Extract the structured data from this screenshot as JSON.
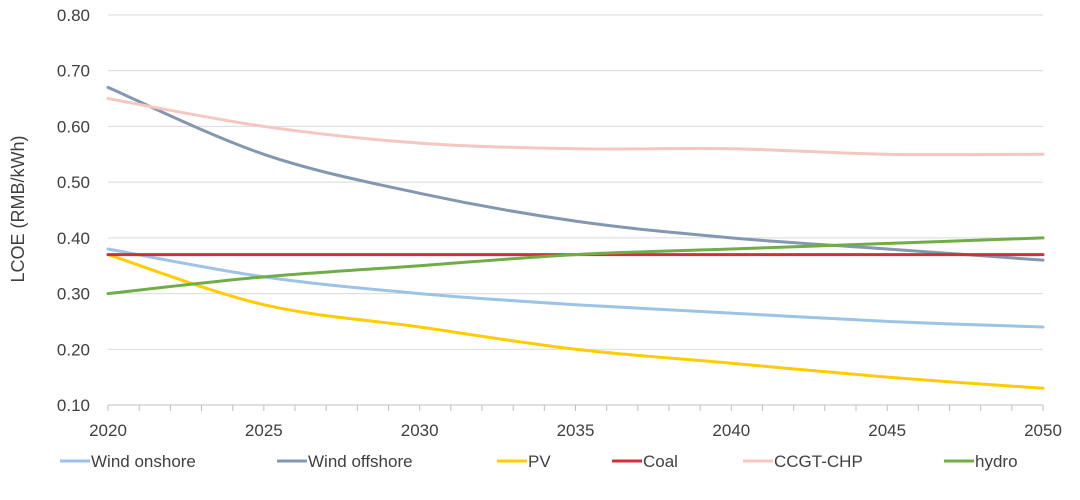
{
  "chart_data": {
    "type": "line",
    "title": "",
    "xlabel": "",
    "ylabel": "LCOE (RMB/kWh)",
    "xlim": [
      2020,
      2050
    ],
    "ylim": [
      0.1,
      0.8
    ],
    "x_ticks": [
      2020,
      2025,
      2030,
      2035,
      2040,
      2045,
      2050
    ],
    "y_ticks": [
      "0.10",
      "0.20",
      "0.30",
      "0.40",
      "0.50",
      "0.60",
      "0.70",
      "0.80"
    ],
    "grid": "horizontal",
    "legend_position": "bottom",
    "series": [
      {
        "name": "Wind onshore",
        "color": "#9dc3e6",
        "x": [
          2020,
          2025,
          2030,
          2035,
          2040,
          2045,
          2050
        ],
        "values": [
          0.38,
          0.33,
          0.3,
          0.28,
          0.265,
          0.25,
          0.24
        ]
      },
      {
        "name": "Wind offshore",
        "color": "#8497b0",
        "x": [
          2020,
          2025,
          2030,
          2035,
          2040,
          2045,
          2050
        ],
        "values": [
          0.67,
          0.55,
          0.48,
          0.43,
          0.4,
          0.38,
          0.36
        ]
      },
      {
        "name": "PV",
        "color": "#ffcc00",
        "x": [
          2020,
          2025,
          2030,
          2035,
          2040,
          2045,
          2050
        ],
        "values": [
          0.37,
          0.28,
          0.24,
          0.2,
          0.175,
          0.15,
          0.13
        ]
      },
      {
        "name": "Coal",
        "color": "#d32f3a",
        "x": [
          2020,
          2025,
          2030,
          2035,
          2040,
          2045,
          2050
        ],
        "values": [
          0.37,
          0.37,
          0.37,
          0.37,
          0.37,
          0.37,
          0.37
        ]
      },
      {
        "name": "CCGT-CHP",
        "color": "#f4c7c0",
        "x": [
          2020,
          2025,
          2030,
          2035,
          2040,
          2045,
          2050
        ],
        "values": [
          0.65,
          0.6,
          0.57,
          0.56,
          0.56,
          0.55,
          0.55
        ]
      },
      {
        "name": "hydro",
        "color": "#70ad47",
        "x": [
          2020,
          2025,
          2030,
          2035,
          2040,
          2045,
          2050
        ],
        "values": [
          0.3,
          0.33,
          0.35,
          0.37,
          0.38,
          0.39,
          0.4
        ]
      }
    ]
  }
}
